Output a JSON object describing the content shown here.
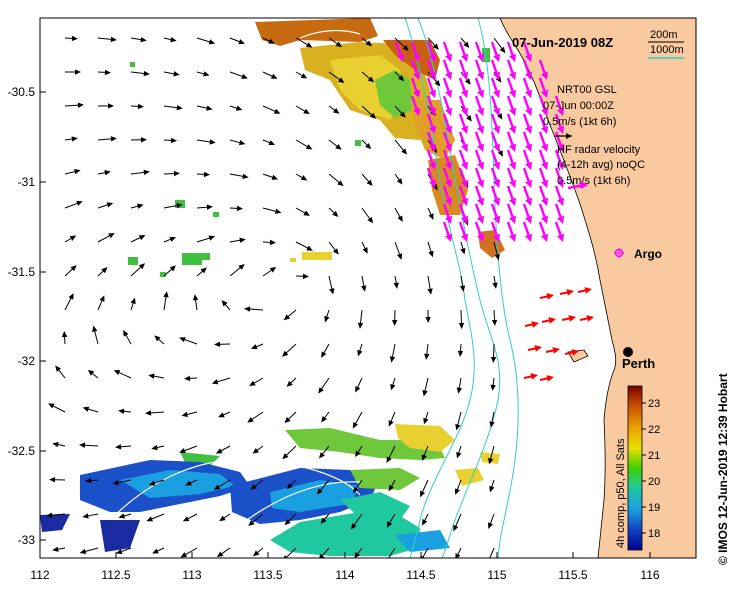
{
  "map": {
    "title": "07-Jun-2019 08Z",
    "x_ticks": [
      "112",
      "112.5",
      "113",
      "113.5",
      "114",
      "114.5",
      "115",
      "115.5",
      "116"
    ],
    "y_ticks": [
      "-30.5",
      "-31",
      "-31.5",
      "-32",
      "-32.5",
      "-33"
    ],
    "credit": "© IMOS 12-Jun-2019 12:39 Hobart",
    "contour_legend": {
      "line1": "200m",
      "line2": "1000m",
      "color1": "#000000",
      "color2": "#33cccc"
    },
    "model_legend": {
      "line1": "NRT00 GSL",
      "line2": "07-Jun 00:00Z",
      "line3": "0.5m/s (1kt 6h)"
    },
    "radar_legend": {
      "line1": "HF radar velocity",
      "line2": "(4-12h avg) noQC",
      "line3": "0.5m/s (1kt 6h)",
      "arrow_color": "#ff00ff"
    },
    "argo_label": "Argo",
    "city_label": "Perth",
    "colorbar": {
      "ticks": [
        "23",
        "22",
        "21",
        "20",
        "19",
        "18"
      ],
      "label": "4h comp, p50, All Sats"
    },
    "colors": {
      "land": "#f9c99f",
      "model_arrow": "#000000",
      "radar_arrow": "#ff00ff",
      "red_arrow": "#ff0000"
    }
  }
}
